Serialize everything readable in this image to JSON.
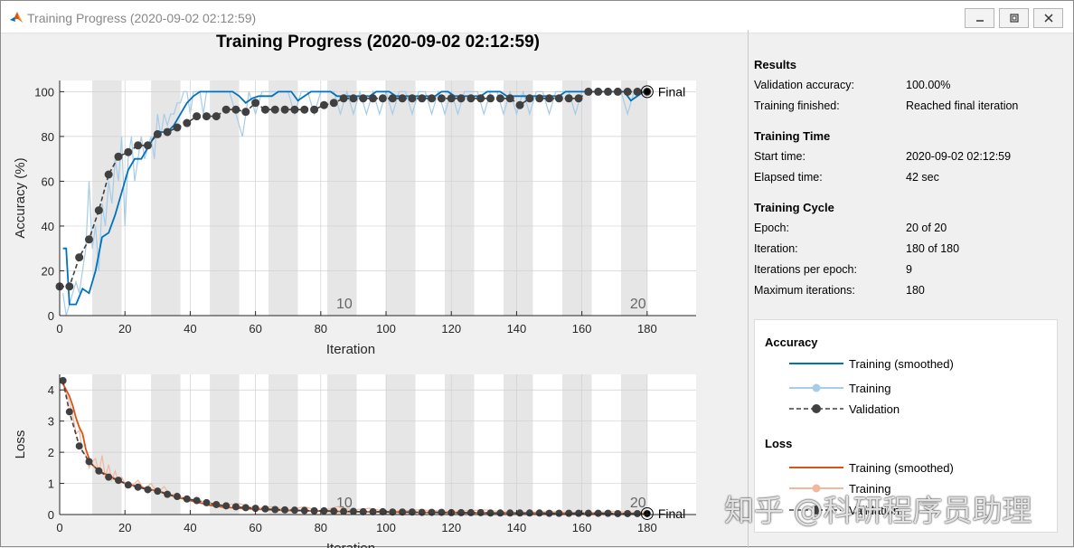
{
  "window": {
    "title": "Training Progress (2020-09-02 02:12:59)"
  },
  "main_title": "Training Progress (2020-09-02 02:12:59)",
  "results": {
    "heading": "Results",
    "rows": [
      {
        "label": "Validation accuracy:",
        "value": "100.00%"
      },
      {
        "label": "Training finished:",
        "value": "Reached final iteration"
      }
    ]
  },
  "training_time": {
    "heading": "Training Time",
    "rows": [
      {
        "label": "Start time:",
        "value": "2020-09-02 02:12:59"
      },
      {
        "label": "Elapsed time:",
        "value": "42 sec"
      }
    ]
  },
  "training_cycle": {
    "heading": "Training Cycle",
    "rows": [
      {
        "label": "Epoch:",
        "value": "20 of 20"
      },
      {
        "label": "Iteration:",
        "value": "180 of 180"
      },
      {
        "label": "Iterations per epoch:",
        "value": "9"
      },
      {
        "label": "Maximum iterations:",
        "value": "180"
      }
    ]
  },
  "legend": {
    "accuracy_heading": "Accuracy",
    "accuracy_items": [
      "Training (smoothed)",
      "Training",
      "Validation"
    ],
    "loss_heading": "Loss",
    "loss_items": [
      "Training (smoothed)",
      "Training",
      "Validation"
    ]
  },
  "watermark": "知乎 @科研程序员助理",
  "colors": {
    "acc_smooth": "#0072bd",
    "acc_raw": "#a6cce6",
    "loss_smooth": "#d95319",
    "loss_raw": "#f2b89e",
    "validation": "#404040",
    "epoch_band": "#e6e6e6"
  },
  "chart_data": [
    {
      "type": "line",
      "xlabel": "Iteration",
      "ylabel": "Accuracy (%)",
      "xlim": [
        0,
        195
      ],
      "ylim": [
        0,
        105
      ],
      "xticks": [
        0,
        20,
        40,
        60,
        80,
        100,
        120,
        140,
        160,
        180
      ],
      "yticks": [
        0,
        20,
        40,
        60,
        80,
        100
      ],
      "epoch_labels": [
        {
          "iteration": 85,
          "label": "10"
        },
        {
          "iteration": 175,
          "label": "20"
        }
      ],
      "final_label": "Final",
      "series": [
        {
          "name": "Training (smoothed)",
          "x": [
            1,
            2,
            3,
            5,
            7,
            9,
            11,
            13,
            15,
            17,
            19,
            21,
            23,
            25,
            27,
            29,
            31,
            33,
            35,
            37,
            39,
            41,
            43,
            45,
            47,
            49,
            51,
            53,
            55,
            57,
            59,
            61,
            63,
            65,
            67,
            69,
            71,
            73,
            75,
            77,
            79,
            81,
            83,
            85,
            87,
            89,
            91,
            93,
            95,
            97,
            99,
            101,
            103,
            105,
            107,
            109,
            111,
            113,
            115,
            117,
            119,
            121,
            123,
            125,
            127,
            129,
            131,
            133,
            135,
            137,
            139,
            141,
            143,
            145,
            147,
            149,
            151,
            153,
            155,
            157,
            159,
            161,
            163,
            165,
            167,
            169,
            171,
            173,
            175,
            177,
            179,
            180
          ],
          "values": [
            30,
            30,
            5,
            5,
            12,
            10,
            20,
            35,
            37,
            45,
            55,
            65,
            70,
            70,
            75,
            80,
            82,
            82,
            85,
            90,
            95,
            98,
            100,
            100,
            100,
            100,
            100,
            100,
            98,
            95,
            97,
            98,
            98,
            98,
            100,
            100,
            100,
            96,
            98,
            100,
            100,
            100,
            100,
            98,
            98,
            98,
            98,
            98,
            98,
            100,
            100,
            100,
            98,
            98,
            98,
            98,
            98,
            98,
            98,
            100,
            100,
            98,
            98,
            98,
            98,
            98,
            100,
            100,
            100,
            98,
            98,
            98,
            98,
            98,
            98,
            98,
            98,
            98,
            100,
            100,
            100,
            100,
            100,
            100,
            100,
            100,
            100,
            100,
            96,
            98,
            100,
            100
          ]
        },
        {
          "name": "Training",
          "x": [
            1,
            2,
            3,
            4,
            5,
            6,
            7,
            8,
            9,
            10,
            11,
            12,
            13,
            14,
            15,
            16,
            17,
            18,
            19,
            20,
            21,
            22,
            23,
            24,
            25,
            26,
            27,
            28,
            29,
            30,
            31,
            32,
            33,
            34,
            35,
            36,
            37,
            38,
            39,
            40,
            41,
            42,
            43,
            44,
            45,
            46,
            47,
            48,
            49,
            50,
            52,
            54,
            56,
            58,
            60,
            62,
            64,
            66,
            68,
            70,
            72,
            74,
            76,
            78,
            80,
            82,
            84,
            86,
            88,
            90,
            92,
            94,
            96,
            98,
            100,
            102,
            104,
            106,
            108,
            110,
            112,
            114,
            116,
            118,
            120,
            122,
            124,
            126,
            128,
            130,
            132,
            134,
            136,
            138,
            140,
            142,
            144,
            146,
            148,
            150,
            152,
            154,
            156,
            158,
            160,
            162,
            164,
            166,
            168,
            170,
            172,
            174,
            176,
            178,
            180
          ],
          "values": [
            10,
            0,
            5,
            10,
            15,
            10,
            20,
            30,
            60,
            30,
            40,
            20,
            50,
            40,
            60,
            50,
            70,
            60,
            80,
            40,
            70,
            80,
            60,
            70,
            80,
            70,
            75,
            80,
            70,
            90,
            80,
            90,
            85,
            90,
            90,
            95,
            95,
            100,
            100,
            90,
            100,
            100,
            100,
            90,
            100,
            100,
            100,
            100,
            100,
            100,
            100,
            90,
            80,
            100,
            90,
            100,
            100,
            100,
            100,
            100,
            90,
            100,
            100,
            90,
            100,
            100,
            100,
            90,
            100,
            90,
            100,
            90,
            100,
            90,
            100,
            90,
            100,
            100,
            90,
            100,
            100,
            90,
            100,
            90,
            100,
            90,
            100,
            100,
            100,
            90,
            100,
            100,
            90,
            100,
            90,
            100,
            90,
            100,
            100,
            90,
            100,
            100,
            100,
            90,
            100,
            100,
            100,
            100,
            100,
            100,
            100,
            90,
            100,
            100,
            100
          ]
        },
        {
          "name": "Validation",
          "x": [
            0,
            3,
            6,
            9,
            12,
            15,
            18,
            21,
            24,
            27,
            30,
            33,
            36,
            39,
            42,
            45,
            48,
            51,
            54,
            57,
            60,
            63,
            66,
            69,
            72,
            75,
            78,
            81,
            84,
            87,
            90,
            93,
            96,
            99,
            102,
            105,
            108,
            111,
            114,
            117,
            120,
            123,
            126,
            129,
            132,
            135,
            138,
            141,
            144,
            147,
            150,
            153,
            156,
            159,
            162,
            165,
            168,
            171,
            174,
            177,
            180
          ],
          "values": [
            13,
            13,
            26,
            34,
            47,
            63,
            71,
            73,
            76,
            76,
            81,
            82,
            84,
            86,
            89,
            89,
            89,
            92,
            92,
            91,
            95,
            92,
            92,
            92,
            92,
            92,
            92,
            94,
            95,
            97,
            97,
            97,
            97,
            97,
            97,
            97,
            97,
            97,
            97,
            97,
            97,
            97,
            97,
            97,
            97,
            97,
            97,
            94,
            97,
            97,
            97,
            97,
            97,
            97,
            100,
            100,
            100,
            100,
            100,
            100,
            100
          ]
        }
      ]
    },
    {
      "type": "line",
      "xlabel": "Iteration",
      "ylabel": "Loss",
      "xlim": [
        0,
        195
      ],
      "ylim": [
        0,
        4.5
      ],
      "xticks": [
        0,
        20,
        40,
        60,
        80,
        100,
        120,
        140,
        160,
        180
      ],
      "yticks": [
        0,
        1,
        2,
        3,
        4
      ],
      "epoch_labels": [
        {
          "iteration": 85,
          "label": "10"
        },
        {
          "iteration": 175,
          "label": "20"
        }
      ],
      "final_label": "Final",
      "series": [
        {
          "name": "Training (smoothed)",
          "x": [
            1,
            2,
            3,
            4,
            5,
            6,
            7,
            8,
            9,
            10,
            12,
            14,
            16,
            18,
            20,
            22,
            24,
            26,
            28,
            30,
            32,
            34,
            36,
            38,
            40,
            42,
            44,
            46,
            48,
            50,
            55,
            60,
            65,
            70,
            75,
            80,
            90,
            100,
            110,
            120,
            130,
            140,
            150,
            160,
            170,
            175,
            180
          ],
          "values": [
            4.2,
            4.0,
            3.8,
            3.5,
            3.1,
            2.8,
            2.6,
            2.1,
            1.8,
            1.6,
            1.4,
            1.3,
            1.2,
            1.1,
            1.0,
            0.95,
            0.9,
            0.85,
            0.8,
            0.75,
            0.7,
            0.62,
            0.55,
            0.5,
            0.45,
            0.4,
            0.35,
            0.3,
            0.27,
            0.24,
            0.2,
            0.17,
            0.15,
            0.13,
            0.12,
            0.11,
            0.09,
            0.08,
            0.07,
            0.06,
            0.05,
            0.05,
            0.04,
            0.04,
            0.03,
            0.03,
            0.03
          ]
        },
        {
          "name": "Training",
          "x": [
            1,
            2,
            3,
            4,
            5,
            6,
            7,
            8,
            9,
            10,
            11,
            12,
            13,
            14,
            15,
            16,
            17,
            18,
            19,
            20,
            22,
            24,
            26,
            28,
            30,
            32,
            34,
            36,
            38,
            40,
            45,
            50,
            55,
            60,
            65,
            70,
            75,
            80,
            85,
            90,
            95,
            100,
            110,
            120,
            130,
            140,
            150,
            160,
            170,
            180
          ],
          "values": [
            4.3,
            3.9,
            3.6,
            3.2,
            2.6,
            2.7,
            2.0,
            1.9,
            1.5,
            1.7,
            1.8,
            1.3,
            1.9,
            1.2,
            1.6,
            1.1,
            1.4,
            1.0,
            1.2,
            1.0,
            0.9,
            1.1,
            0.8,
            1.0,
            0.7,
            0.9,
            0.6,
            0.7,
            0.5,
            0.5,
            0.4,
            0.3,
            0.35,
            0.2,
            0.25,
            0.15,
            0.25,
            0.1,
            0.25,
            0.15,
            0.2,
            0.1,
            0.15,
            0.1,
            0.15,
            0.05,
            0.1,
            0.05,
            0.1,
            0.05
          ]
        },
        {
          "name": "Validation",
          "x": [
            1,
            3,
            6,
            9,
            12,
            15,
            18,
            21,
            24,
            27,
            30,
            33,
            36,
            39,
            42,
            45,
            48,
            51,
            54,
            57,
            60,
            63,
            66,
            69,
            72,
            75,
            78,
            81,
            84,
            87,
            90,
            93,
            96,
            99,
            102,
            105,
            108,
            111,
            114,
            117,
            120,
            123,
            126,
            129,
            132,
            135,
            138,
            141,
            144,
            147,
            150,
            153,
            156,
            159,
            162,
            165,
            168,
            171,
            174,
            177,
            180
          ],
          "values": [
            4.3,
            3.3,
            2.2,
            1.7,
            1.4,
            1.2,
            1.1,
            0.95,
            0.88,
            0.8,
            0.75,
            0.65,
            0.58,
            0.5,
            0.45,
            0.38,
            0.32,
            0.28,
            0.25,
            0.22,
            0.2,
            0.18,
            0.16,
            0.15,
            0.14,
            0.13,
            0.12,
            0.12,
            0.11,
            0.1,
            0.1,
            0.09,
            0.09,
            0.09,
            0.08,
            0.08,
            0.08,
            0.07,
            0.07,
            0.07,
            0.06,
            0.06,
            0.06,
            0.06,
            0.05,
            0.05,
            0.05,
            0.05,
            0.05,
            0.05,
            0.04,
            0.04,
            0.04,
            0.04,
            0.04,
            0.04,
            0.04,
            0.03,
            0.03,
            0.03,
            0.03
          ]
        }
      ]
    }
  ]
}
